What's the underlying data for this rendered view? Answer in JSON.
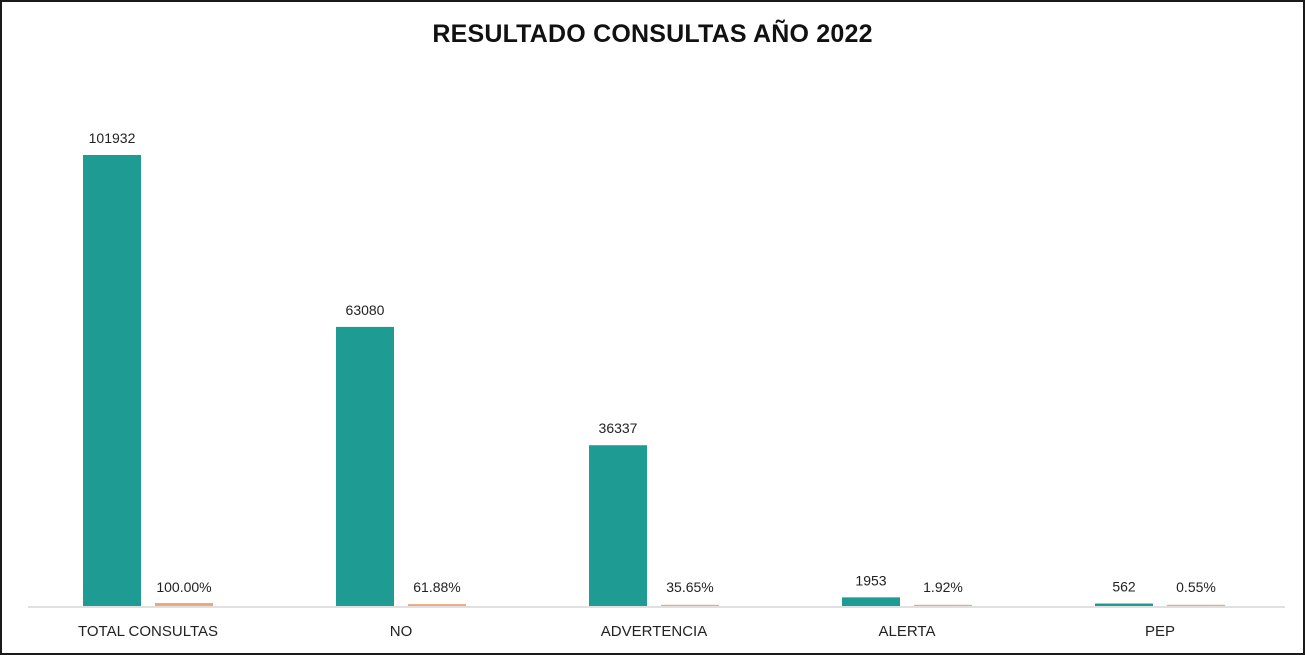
{
  "chart_data": {
    "type": "bar",
    "title": "RESULTADO CONSULTAS AÑO 2022",
    "xlabel": "",
    "ylabel": "",
    "categories": [
      "TOTAL CONSULTAS",
      "NO",
      "ADVERTENCIA",
      "ALERTA",
      "PEP"
    ],
    "series": [
      {
        "values": [
          101932,
          63080,
          36337,
          1953,
          562
        ],
        "labels": [
          "101932",
          "63080",
          "36337",
          "1953",
          "562"
        ],
        "color": "#1e9b92"
      },
      {
        "values": [
          100.0,
          61.88,
          35.65,
          1.92,
          0.55
        ],
        "labels": [
          "100.00%",
          "61.88%",
          "35.65%",
          "1.92%",
          "0.55%"
        ],
        "color": "#f0a57a"
      }
    ],
    "ylim": [
      0,
      101932
    ],
    "grid": false,
    "legend": "none"
  }
}
